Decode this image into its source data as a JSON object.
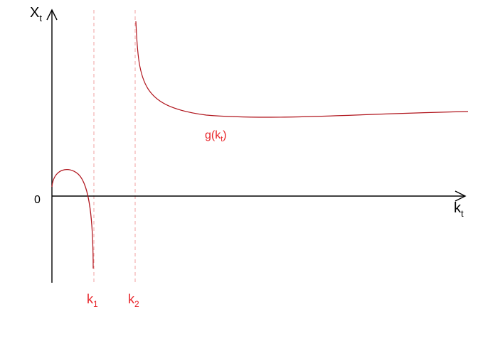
{
  "axes": {
    "y_label": "X",
    "y_label_sub": "t",
    "x_label": "k",
    "x_label_sub": "t",
    "origin_label": "0"
  },
  "markers": [
    {
      "label": "k",
      "sub": "1"
    },
    {
      "label": "k",
      "sub": "2"
    }
  ],
  "curve": {
    "label": "g(k",
    "label_sub": "t",
    "label_end": ")"
  },
  "colors": {
    "curve": "#b0141c",
    "marker_line": "#f0a0a0",
    "text_red": "#e8262b",
    "axis": "#000000"
  }
}
